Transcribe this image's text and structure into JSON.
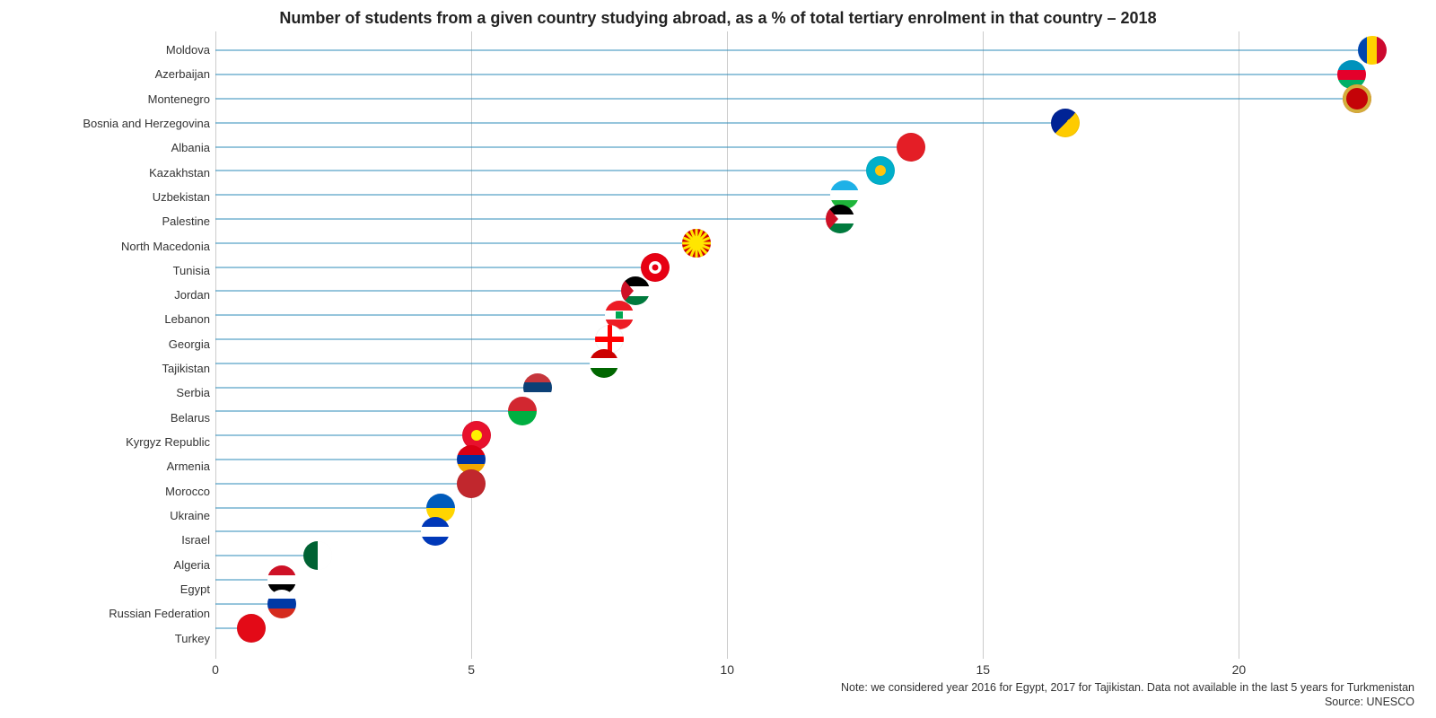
{
  "chart": {
    "type": "lollipop",
    "title": "Number of students from a given country studying abroad, as a % of total tertiary enrolment in that country – 2018",
    "title_fontsize": 18,
    "title_color": "#222222",
    "background_color": "#ffffff",
    "stem_color": "#2d8bba",
    "grid_color": "#cccccc",
    "label_fontsize": 13,
    "tick_fontsize": 14,
    "marker_size": 32,
    "xlim": [
      0,
      23.5
    ],
    "xticks": [
      0,
      5,
      10,
      15,
      20
    ],
    "data": [
      {
        "country": "Moldova",
        "value": 22.6,
        "flag_type": "v3",
        "flag_colors": [
          "#0046ae",
          "#ffd200",
          "#cc092f"
        ]
      },
      {
        "country": "Azerbaijan",
        "value": 22.2,
        "flag_type": "h3",
        "flag_colors": [
          "#0092bc",
          "#e4002b",
          "#00af66"
        ]
      },
      {
        "country": "Montenegro",
        "value": 22.3,
        "flag_type": "solid_border",
        "flag_colors": [
          "#c40308",
          "#d3ae3b"
        ]
      },
      {
        "country": "Bosnia and Herzegovina",
        "value": 16.6,
        "flag_type": "diag2",
        "flag_colors": [
          "#002395",
          "#fecb00"
        ]
      },
      {
        "country": "Albania",
        "value": 13.6,
        "flag_type": "solid",
        "flag_colors": [
          "#e41e26"
        ]
      },
      {
        "country": "Kazakhstan",
        "value": 13.0,
        "flag_type": "solid_sun",
        "flag_colors": [
          "#00afca",
          "#fec50c"
        ]
      },
      {
        "country": "Uzbekistan",
        "value": 12.3,
        "flag_type": "h3",
        "flag_colors": [
          "#1eb1e7",
          "#ffffff",
          "#1eb53a"
        ]
      },
      {
        "country": "Palestine",
        "value": 12.2,
        "flag_type": "h3_tri",
        "flag_colors": [
          "#000000",
          "#ffffff",
          "#007a3d",
          "#ce1126"
        ]
      },
      {
        "country": "North Macedonia",
        "value": 9.4,
        "flag_type": "sun",
        "flag_colors": [
          "#d20000",
          "#ffe600"
        ]
      },
      {
        "country": "Tunisia",
        "value": 8.6,
        "flag_type": "solid_ring",
        "flag_colors": [
          "#e70013",
          "#ffffff"
        ]
      },
      {
        "country": "Jordan",
        "value": 8.2,
        "flag_type": "h3_tri",
        "flag_colors": [
          "#000000",
          "#ffffff",
          "#007a3d",
          "#ce1126"
        ]
      },
      {
        "country": "Lebanon",
        "value": 7.9,
        "flag_type": "h3_emblem",
        "flag_colors": [
          "#ed1c24",
          "#ffffff",
          "#ed1c24",
          "#00a651"
        ]
      },
      {
        "country": "Georgia",
        "value": 7.7,
        "flag_type": "cross",
        "flag_colors": [
          "#ffffff",
          "#ff0000"
        ]
      },
      {
        "country": "Tajikistan",
        "value": 7.6,
        "flag_type": "h3",
        "flag_colors": [
          "#cc0000",
          "#ffffff",
          "#006600"
        ]
      },
      {
        "country": "Serbia",
        "value": 6.3,
        "flag_type": "h3",
        "flag_colors": [
          "#c6363c",
          "#0c4076",
          "#ffffff"
        ]
      },
      {
        "country": "Belarus",
        "value": 6.0,
        "flag_type": "h2",
        "flag_colors": [
          "#d22730",
          "#00af41"
        ]
      },
      {
        "country": "Kyrgyz Republic",
        "value": 5.1,
        "flag_type": "solid_sun",
        "flag_colors": [
          "#e8112d",
          "#ffef00"
        ]
      },
      {
        "country": "Armenia",
        "value": 5.0,
        "flag_type": "h3",
        "flag_colors": [
          "#d90012",
          "#0033a0",
          "#f2a800"
        ]
      },
      {
        "country": "Morocco",
        "value": 5.0,
        "flag_type": "solid",
        "flag_colors": [
          "#c1272d"
        ]
      },
      {
        "country": "Ukraine",
        "value": 4.4,
        "flag_type": "h2",
        "flag_colors": [
          "#005bbb",
          "#ffd500"
        ]
      },
      {
        "country": "Israel",
        "value": 4.3,
        "flag_type": "h3",
        "flag_colors": [
          "#0038b8",
          "#ffffff",
          "#0038b8"
        ]
      },
      {
        "country": "Algeria",
        "value": 2.0,
        "flag_type": "v2",
        "flag_colors": [
          "#006233",
          "#ffffff"
        ]
      },
      {
        "country": "Egypt",
        "value": 1.3,
        "flag_type": "h3",
        "flag_colors": [
          "#ce1126",
          "#ffffff",
          "#000000"
        ]
      },
      {
        "country": "Russian Federation",
        "value": 1.3,
        "flag_type": "h3",
        "flag_colors": [
          "#ffffff",
          "#0039a6",
          "#d52b1e"
        ]
      },
      {
        "country": "Turkey",
        "value": 0.7,
        "flag_type": "solid",
        "flag_colors": [
          "#e30a17"
        ]
      }
    ],
    "note": "Note: we considered year 2016 for Egypt, 2017 for Tajikistan. Data not available in the last 5 years for Turkmenistan",
    "source": "Source: UNESCO"
  }
}
